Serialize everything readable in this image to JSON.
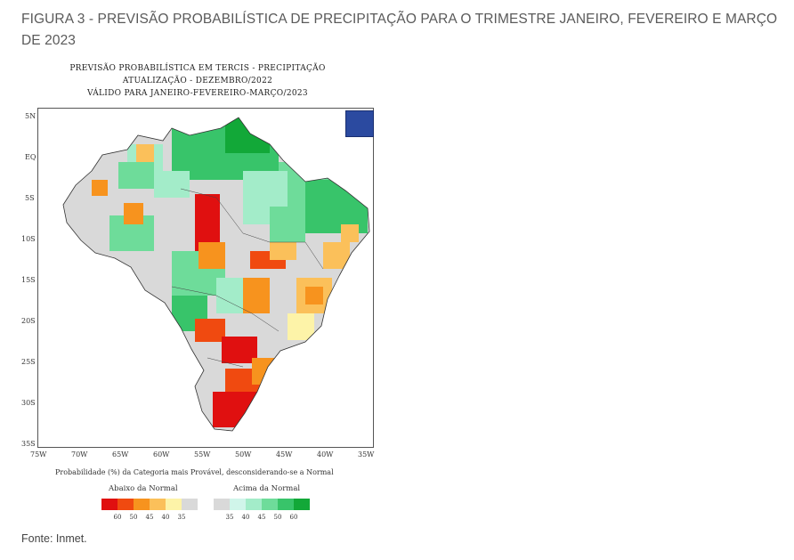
{
  "caption": "FIGURA 3 -  PREVISÃO PROBABILÍSTICA DE PRECIPITAÇÃO PARA O TRIMESTRE JANEIRO, FEVEREIRO E MARÇO DE 2023",
  "figure": {
    "title_lines": [
      "PREVISÃO PROBABILÍSTICA EM TERCIS - PRECIPITAÇÃO",
      "ATUALIZAÇÃO - DEZEMBRO/2022",
      "VÁLIDO PARA JANEIRO-FEVEREIRO-MARÇO/2023"
    ],
    "lat_ticks": [
      "5N",
      "EQ",
      "5S",
      "10S",
      "15S",
      "20S",
      "25S",
      "30S",
      "35S"
    ],
    "lon_ticks": [
      "75W",
      "70W",
      "65W",
      "60W",
      "55W",
      "50W",
      "45W",
      "40W",
      "35W"
    ],
    "note": "Probabilidade (%) da Categoria mais Provável, desconsiderando-se a Normal",
    "legend": {
      "below_label": "Abaixo da Normal",
      "above_label": "Acima da Normal",
      "below_values": [
        "60",
        "50",
        "45",
        "40",
        "35"
      ],
      "above_values": [
        "35",
        "40",
        "45",
        "50",
        "60"
      ],
      "below_colors": [
        "#e01010",
        "#f04a10",
        "#f7931e",
        "#fbc05a",
        "#fdf3a8",
        "#d9d9d9"
      ],
      "above_colors": [
        "#d9d9d9",
        "#d0f5ea",
        "#a3ecc9",
        "#6edc9a",
        "#38c46a",
        "#12a838"
      ]
    }
  },
  "source": "Fonte: Inmet."
}
